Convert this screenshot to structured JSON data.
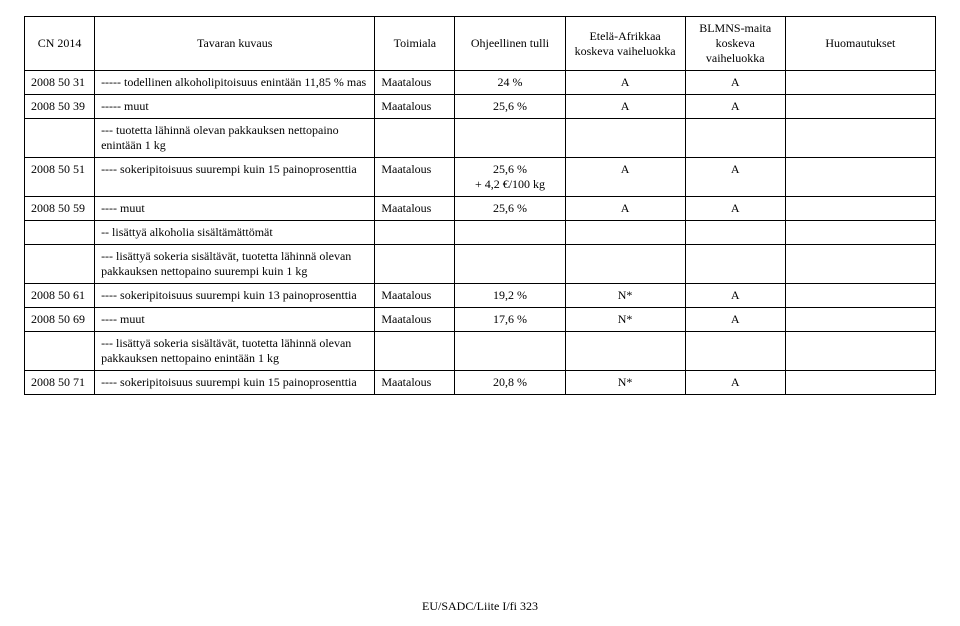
{
  "table": {
    "columns": [
      "CN 2014",
      "Tavaran kuvaus",
      "Toimiala",
      "Ohjeellinen tulli",
      "Etelä-Afrikkaa koskeva vaiheluokka",
      "BLMNS-maita koskeva vaiheluokka",
      "Huomautukset"
    ],
    "rows": [
      {
        "cn": "2008 50 31",
        "desc": "----- todellinen alkoholipitoisuus enintään 11,85 % mas",
        "toim": "Maatalous",
        "tulli": "24 %",
        "ea": "A",
        "blm": "A",
        "huom": ""
      },
      {
        "cn": "2008 50 39",
        "desc": "----- muut",
        "toim": "Maatalous",
        "tulli": "25,6 %",
        "ea": "A",
        "blm": "A",
        "huom": ""
      },
      {
        "cn": "",
        "desc": "--- tuotetta lähinnä olevan pakkauksen nettopaino enintään 1 kg",
        "toim": "",
        "tulli": "",
        "ea": "",
        "blm": "",
        "huom": ""
      },
      {
        "cn": "2008 50 51",
        "desc": "---- sokeripitoisuus suurempi kuin 15 painoprosenttia",
        "toim": "Maatalous",
        "tulli": "25,6 %\n+ 4,2 €/100 kg",
        "ea": "A",
        "blm": "A",
        "huom": ""
      },
      {
        "cn": "2008 50 59",
        "desc": "---- muut",
        "toim": "Maatalous",
        "tulli": "25,6 %",
        "ea": "A",
        "blm": "A",
        "huom": ""
      },
      {
        "cn": "",
        "desc": "-- lisättyä alkoholia sisältämättömät",
        "toim": "",
        "tulli": "",
        "ea": "",
        "blm": "",
        "huom": ""
      },
      {
        "cn": "",
        "desc": "--- lisättyä sokeria sisältävät, tuotetta lähinnä olevan pakkauksen nettopaino suurempi kuin 1 kg",
        "toim": "",
        "tulli": "",
        "ea": "",
        "blm": "",
        "huom": ""
      },
      {
        "cn": "2008 50 61",
        "desc": "---- sokeripitoisuus suurempi kuin 13 painoprosenttia",
        "toim": "Maatalous",
        "tulli": "19,2 %",
        "ea": "N*",
        "blm": "A",
        "huom": ""
      },
      {
        "cn": "2008 50 69",
        "desc": "---- muut",
        "toim": "Maatalous",
        "tulli": "17,6 %",
        "ea": "N*",
        "blm": "A",
        "huom": ""
      },
      {
        "cn": "",
        "desc": "--- lisättyä sokeria sisältävät, tuotetta lähinnä olevan pakkauksen nettopaino enintään 1 kg",
        "toim": "",
        "tulli": "",
        "ea": "",
        "blm": "",
        "huom": ""
      },
      {
        "cn": "2008 50 71",
        "desc": "---- sokeripitoisuus suurempi kuin 15 painoprosenttia",
        "toim": "Maatalous",
        "tulli": "20,8 %",
        "ea": "N*",
        "blm": "A",
        "huom": ""
      }
    ]
  },
  "footer": "EU/SADC/Liite I/fi 323"
}
